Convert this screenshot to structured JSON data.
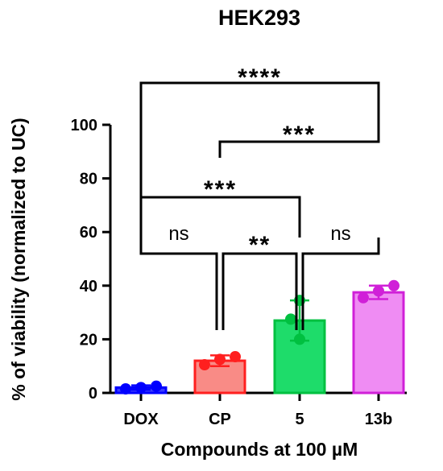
{
  "chart_data": {
    "type": "bar",
    "title": "HEK293",
    "xlabel": "Compounds at 100 µM",
    "ylabel": "% of viability (normalized to UC)",
    "ylim": [
      0,
      100
    ],
    "yticks": [
      0,
      20,
      40,
      60,
      80,
      100
    ],
    "categories": [
      "DOX",
      "CP",
      "5",
      "13b"
    ],
    "series": [
      {
        "values": [
          2,
          12,
          27,
          37.5
        ],
        "errors": [
          0.8,
          2,
          7.5,
          2.5
        ],
        "points": [
          [
            1.5,
            2,
            2.5
          ],
          [
            10.5,
            12.5,
            13.5
          ],
          [
            20,
            27.5,
            34.5
          ],
          [
            35.5,
            38,
            40
          ]
        ],
        "fill_colors": [
          "#3b3bff",
          "#f98b86",
          "#1edc6a",
          "#ef8cf3"
        ],
        "edge_colors": [
          "#0000ff",
          "#ff1f1f",
          "#00c040",
          "#d020d8"
        ]
      }
    ],
    "comparisons": [
      {
        "from": "DOX",
        "to": "CP",
        "label": "ns"
      },
      {
        "from": "CP",
        "to": "5",
        "label": "**"
      },
      {
        "from": "5",
        "to": "13b",
        "label": "ns"
      },
      {
        "from": "DOX",
        "to": "5",
        "label": "***"
      },
      {
        "from": "CP",
        "to": "13b",
        "label": "***"
      },
      {
        "from": "DOX",
        "to": "13b",
        "label": "****"
      }
    ],
    "grid": false,
    "legend": "none"
  }
}
